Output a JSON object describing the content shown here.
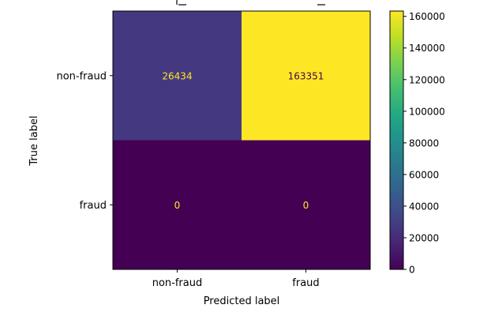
{
  "chart_data": {
    "type": "heatmap",
    "xlabel": "Predicted label",
    "ylabel": "True label",
    "x_categories": [
      "non-fraud",
      "fraud"
    ],
    "y_categories": [
      "non-fraud",
      "fraud"
    ],
    "matrix": [
      [
        26434,
        163351
      ],
      [
        0,
        0
      ]
    ],
    "cell_labels": [
      [
        "26434",
        "163351"
      ],
      [
        "0",
        "0"
      ]
    ],
    "colormap": "viridis",
    "colorbar": {
      "ticks": [
        "0",
        "20000",
        "40000",
        "60000",
        "80000",
        "100000",
        "120000",
        "140000",
        "160000"
      ],
      "range": [
        0,
        163351
      ]
    },
    "colors": {
      "low": "#440154",
      "cell_26434": "#3b2f7f",
      "high": "#fde725",
      "text_on_dark": "#fde725",
      "text_on_light": "#440154"
    }
  }
}
